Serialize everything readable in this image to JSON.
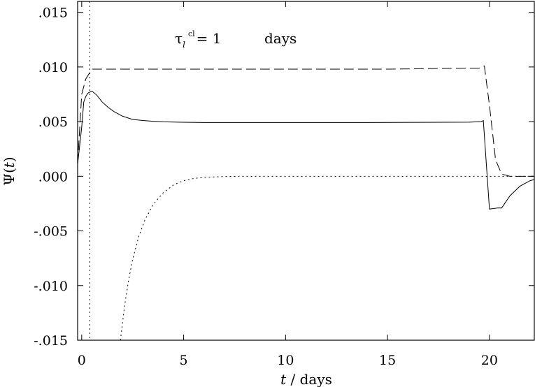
{
  "chart_data": {
    "type": "line",
    "xlabel_italic": "t",
    "xlabel_rest": " / days",
    "ylabel_prefix": "Ψ(",
    "ylabel_italic": "t",
    "ylabel_suffix": ")",
    "annotation": {
      "tau": "τ",
      "tau_sub": "l",
      "tau_sup": "cl",
      "value_text": "= 1",
      "unit": "days"
    },
    "xlim": [
      -0.2,
      22.2
    ],
    "ylim": [
      -0.015,
      0.016
    ],
    "xticks": [
      {
        "value": 0,
        "label": "0"
      },
      {
        "value": 5,
        "label": "5"
      },
      {
        "value": 10,
        "label": "10"
      },
      {
        "value": 15,
        "label": "15"
      },
      {
        "value": 20,
        "label": "20"
      }
    ],
    "yticks": [
      {
        "value": 0.015,
        "label": ".015"
      },
      {
        "value": 0.01,
        "label": ".010"
      },
      {
        "value": 0.005,
        "label": ".005"
      },
      {
        "value": 0.0,
        "label": ".000"
      },
      {
        "value": -0.005,
        "label": "-.005"
      },
      {
        "value": -0.01,
        "label": "-.010"
      },
      {
        "value": -0.015,
        "label": "-.015"
      }
    ],
    "vline": {
      "x": 0.4,
      "style": "dotted"
    },
    "series": [
      {
        "style": "solid",
        "x": [
          -0.2,
          0.0,
          0.1,
          0.2,
          0.3,
          0.4,
          0.5,
          0.75,
          1.0,
          1.3,
          1.6,
          2.0,
          2.5,
          3.0,
          3.5,
          4.0,
          5.0,
          6.0,
          8.0,
          10.0,
          14.0,
          19.0,
          19.6,
          19.7,
          20.0,
          20.4,
          20.6,
          21.0,
          21.5,
          22.0,
          22.2
        ],
        "y": [
          0.0011,
          0.0045,
          0.0068,
          0.0073,
          0.0076,
          0.0077,
          0.0078,
          0.0074,
          0.0068,
          0.0063,
          0.0059,
          0.0055,
          0.0052,
          0.0051,
          0.00503,
          0.00498,
          0.00494,
          0.00492,
          0.00492,
          0.00492,
          0.00492,
          0.00495,
          0.005,
          0.0051,
          -0.003,
          -0.0029,
          -0.0029,
          -0.0018,
          -0.0009,
          -0.0004,
          -0.0003
        ]
      },
      {
        "style": "dashed",
        "x": [
          -0.2,
          0.0,
          0.2,
          0.4,
          0.5,
          0.7,
          1.0,
          5.0,
          10.0,
          15.0,
          19.0,
          19.5,
          19.75,
          20.0,
          20.3,
          20.6,
          21.0,
          22.2
        ],
        "y": [
          0.0011,
          0.0075,
          0.0089,
          0.0095,
          0.0098,
          0.0098,
          0.0098,
          0.0098,
          0.0098,
          0.0098,
          0.0099,
          0.0099,
          0.0101,
          0.0065,
          0.0015,
          0.0002,
          0.0,
          0.0
        ]
      },
      {
        "style": "dotted",
        "x": [
          1.9,
          2.1,
          2.3,
          2.5,
          2.8,
          3.1,
          3.5,
          4.0,
          4.5,
          5.0,
          5.5,
          6.0,
          7.0,
          8.0,
          9.0,
          10.0,
          15.0,
          20.0,
          22.2
        ],
        "y": [
          -0.015,
          -0.0119,
          -0.0095,
          -0.0076,
          -0.0055,
          -0.004,
          -0.0026,
          -0.0015,
          -0.0008,
          -0.0004,
          -0.0002,
          -0.0001,
          -2e-05,
          0.0,
          0.0,
          0.0,
          0.0,
          0.0,
          0.0
        ]
      }
    ]
  }
}
